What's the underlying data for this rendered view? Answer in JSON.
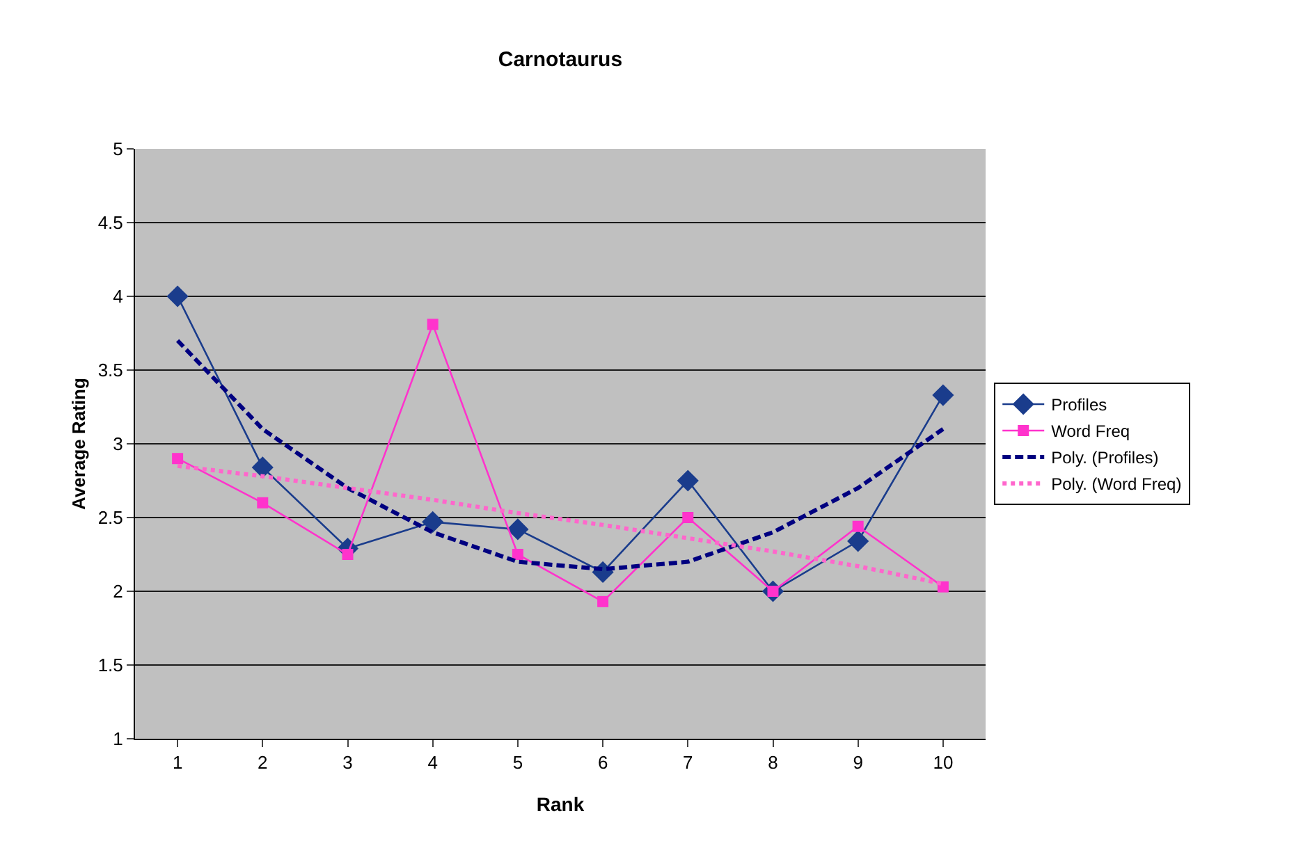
{
  "chart_data": {
    "type": "line",
    "title": "Carnotaurus",
    "xlabel": "Rank",
    "ylabel": "Average Rating",
    "categories": [
      "1",
      "2",
      "3",
      "4",
      "5",
      "6",
      "7",
      "8",
      "9",
      "10"
    ],
    "series": [
      {
        "name": "Profiles",
        "color": "#1a3c8c",
        "marker": "diamond",
        "line_style": "solid",
        "values": [
          4.0,
          2.84,
          2.29,
          2.47,
          2.42,
          2.13,
          2.75,
          2.0,
          2.34,
          3.33
        ]
      },
      {
        "name": "Word Freq",
        "color": "#ff33cc",
        "marker": "square",
        "line_style": "solid",
        "values": [
          2.9,
          2.6,
          2.25,
          3.81,
          2.25,
          1.93,
          2.5,
          2.0,
          2.44,
          2.03
        ]
      },
      {
        "name": "Poly. (Profiles)",
        "color": "#000080",
        "marker": "none",
        "line_style": "dashed",
        "values": [
          3.7,
          3.1,
          2.7,
          2.4,
          2.2,
          2.15,
          2.2,
          2.4,
          2.7,
          3.1
        ]
      },
      {
        "name": "Poly. (Word Freq)",
        "color": "#ff66cc",
        "marker": "none",
        "line_style": "dotted",
        "values": [
          2.85,
          2.78,
          2.7,
          2.62,
          2.53,
          2.45,
          2.36,
          2.27,
          2.17,
          2.05
        ]
      }
    ],
    "ylim": [
      1,
      5
    ],
    "yticks": [
      1,
      1.5,
      2,
      2.5,
      3,
      3.5,
      4,
      4.5,
      5
    ],
    "grid": "y",
    "legend": "right"
  }
}
